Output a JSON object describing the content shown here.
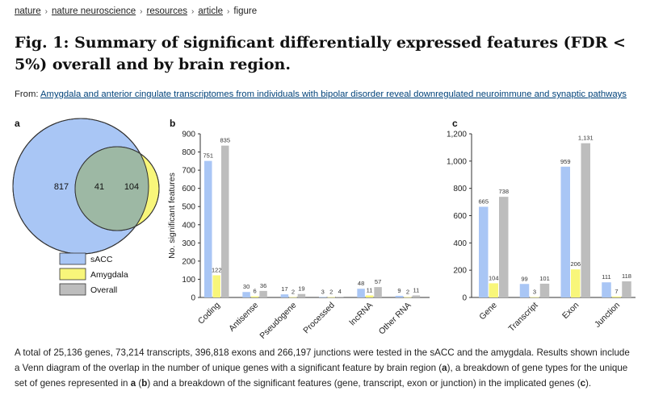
{
  "breadcrumb": [
    "nature",
    "nature neuroscience",
    "resources",
    "article",
    "figure"
  ],
  "title": "Fig. 1: Summary of significant differentially expressed features (FDR < 5%) overall and by brain region.",
  "from_label": "From:",
  "from_link": "Amygdala and anterior cingulate transcriptomes from individuals with bipolar disorder reveal downregulated neuroimmune and synaptic pathways",
  "panels": {
    "a": "a",
    "b": "b",
    "c": "c"
  },
  "colors": {
    "sACC": "#a9c6f5",
    "Amygdala": "#f8f67a",
    "Overall": "#bdbdbd",
    "overlap": "#9db8a4"
  },
  "venn": {
    "sacc_only": "817",
    "overlap": "41",
    "amygdala_only": "104"
  },
  "legend": [
    "sACC",
    "Amygdala",
    "Overall"
  ],
  "chart_data": [
    {
      "type": "bar",
      "panel": "b",
      "ylabel": "No. significant features",
      "ylim": [
        0,
        900
      ],
      "yticks": [
        0,
        100,
        200,
        300,
        400,
        500,
        600,
        700,
        800,
        900
      ],
      "categories": [
        "Coding",
        "Antisense",
        "Pseudogene",
        "Processed",
        "lncRNA",
        "Other RNA"
      ],
      "series": [
        {
          "name": "sACC",
          "values": [
            751,
            30,
            17,
            3,
            48,
            9
          ]
        },
        {
          "name": "Amygdala",
          "values": [
            122,
            6,
            2,
            2,
            11,
            2
          ]
        },
        {
          "name": "Overall",
          "values": [
            835,
            36,
            19,
            4,
            57,
            11
          ]
        }
      ]
    },
    {
      "type": "bar",
      "panel": "c",
      "ylabel": "",
      "ylim": [
        0,
        1200
      ],
      "yticks": [
        0,
        200,
        400,
        600,
        800,
        1000,
        1200
      ],
      "ytick_labels": [
        "0",
        "200",
        "400",
        "600",
        "800",
        "1,000",
        "1,200"
      ],
      "value_labels": {
        "sACC": [
          "665",
          "99",
          "959",
          "111"
        ],
        "Amygdala": [
          "104",
          "3",
          "206",
          "7"
        ],
        "Overall": [
          "738",
          "101",
          "1,131",
          "118"
        ]
      },
      "categories": [
        "Gene",
        "Transcript",
        "Exon",
        "Junction"
      ],
      "series": [
        {
          "name": "sACC",
          "values": [
            665,
            99,
            959,
            111
          ]
        },
        {
          "name": "Amygdala",
          "values": [
            104,
            3,
            206,
            7
          ]
        },
        {
          "name": "Overall",
          "values": [
            738,
            101,
            1131,
            118
          ]
        }
      ]
    }
  ],
  "caption": {
    "t1": "A total of 25,136 genes, 73,214 transcripts, 396,818 exons and 266,197 junctions were tested in the sACC and the amygdala. Results shown include a Venn diagram of the overlap in the number of unique genes with a significant feature by brain region (",
    "b1": "a",
    "t2": "), a breakdown of gene types for the unique set of genes represented in ",
    "b2": "a",
    "t3": " (",
    "b3": "b",
    "t4": ") and a breakdown of the significant features (gene, transcript, exon or junction) in the implicated genes (",
    "b4": "c",
    "t5": ")."
  }
}
